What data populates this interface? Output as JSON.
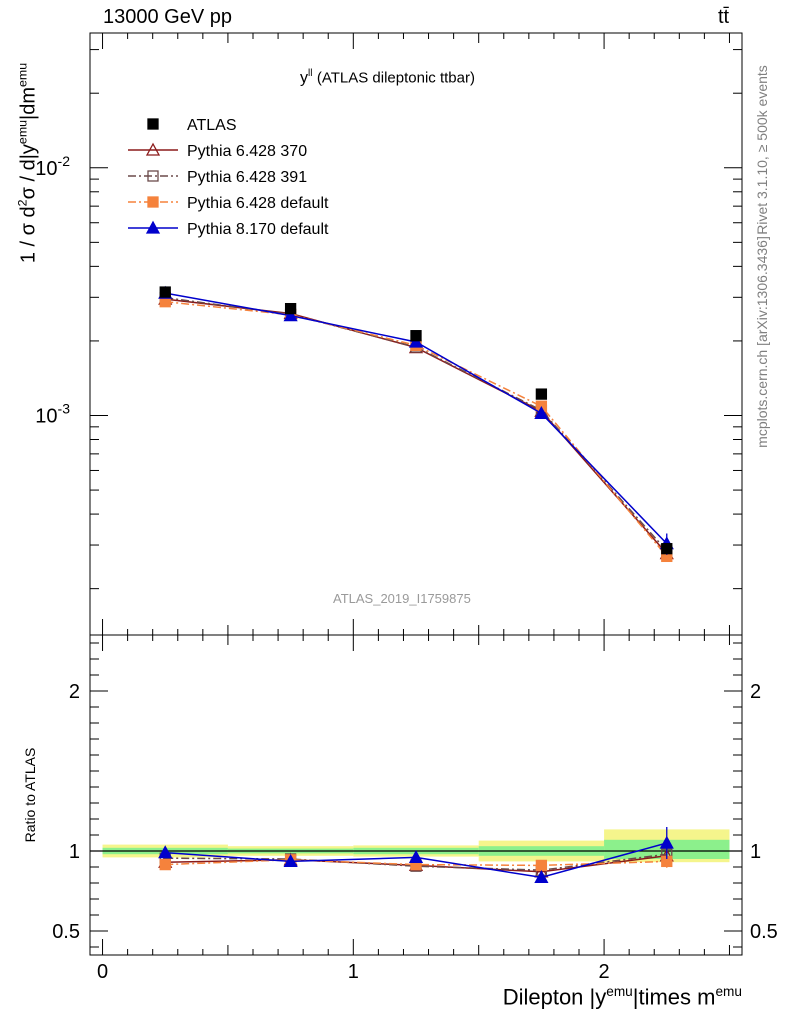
{
  "header": {
    "energy_label": "13000 GeV pp",
    "process_label": "tt̄",
    "rivet_label": "Rivet 3.1.10, ≥ 500k events",
    "mcplots_label": "mcplots.cern.ch [arXiv:1306.3436]",
    "analysis_id": "ATLAS_2019_I1759875"
  },
  "chart_data": [
    {
      "type": "line",
      "panel": "main",
      "title": "y^ll (ATLAS dileptonic ttbar)",
      "ylabel": "1 / σ d²σ / d|y^emu|dm^emu",
      "yscale": "log",
      "ylim": [
        0.00013,
        0.035
      ],
      "xlim": [
        -0.05,
        2.55
      ],
      "y_ticks": [
        {
          "value": 0.01,
          "label": "10^-2"
        },
        {
          "value": 0.001,
          "label": "10^-3"
        }
      ],
      "legend_position": "top-left",
      "x": [
        0.25,
        0.75,
        1.25,
        1.75,
        2.25
      ],
      "series": [
        {
          "name": "ATLAS",
          "color": "#000000",
          "marker": "filled-square",
          "style": "none",
          "values": [
            0.00315,
            0.0027,
            0.0021,
            0.00122,
            0.00029
          ]
        },
        {
          "name": "Pythia 6.428 370",
          "color": "#8b1a1a",
          "marker": "open-triangle",
          "style": "solid",
          "values": [
            0.00295,
            0.00258,
            0.00188,
            0.00104,
            0.000277
          ],
          "errors": [
            4e-05,
            3e-05,
            3e-05,
            3e-05,
            1e-05
          ]
        },
        {
          "name": "Pythia 6.428 391",
          "color": "#6b4a4a",
          "marker": "open-square",
          "style": "dashdot",
          "values": [
            0.00299,
            0.00256,
            0.00189,
            0.00105,
            0.000284
          ],
          "errors": [
            4e-05,
            3e-05,
            3e-05,
            3e-05,
            1e-05
          ]
        },
        {
          "name": "Pythia 6.428 default",
          "color": "#f5823c",
          "marker": "filled-square",
          "style": "dashdot",
          "values": [
            0.00288,
            0.00255,
            0.00192,
            0.00109,
            0.00027
          ],
          "errors": [
            4e-05,
            3e-05,
            3e-05,
            3e-05,
            1e-05
          ]
        },
        {
          "name": "Pythia 8.170 default",
          "color": "#0000cc",
          "marker": "filled-triangle",
          "style": "solid",
          "values": [
            0.00312,
            0.00253,
            0.00198,
            0.00102,
            0.000304
          ],
          "errors": [
            5e-05,
            3e-05,
            3e-05,
            4e-05,
            3e-05
          ]
        }
      ]
    },
    {
      "type": "line",
      "panel": "ratio",
      "ylabel": "Ratio to ATLAS",
      "xlabel": "Dilepton |y^emu|times m^emu",
      "ylim": [
        0.35,
        2.35
      ],
      "xlim": [
        -0.05,
        2.55
      ],
      "x_ticks": [
        {
          "value": 0,
          "label": "0"
        },
        {
          "value": 1,
          "label": "1"
        },
        {
          "value": 2,
          "label": "2"
        }
      ],
      "y_ticks": [
        {
          "value": 0.5,
          "label": "0.5"
        },
        {
          "value": 1,
          "label": "1"
        },
        {
          "value": 2,
          "label": "2"
        }
      ],
      "bins": [
        [
          0,
          0.5
        ],
        [
          0.5,
          1.0
        ],
        [
          1.0,
          1.5
        ],
        [
          1.5,
          2.0
        ],
        [
          2.0,
          2.5
        ]
      ],
      "band_inner": [
        [
          0.98,
          1.02
        ],
        [
          0.985,
          1.015
        ],
        [
          0.98,
          1.02
        ],
        [
          0.97,
          1.03
        ],
        [
          0.95,
          1.07
        ]
      ],
      "band_outer": [
        [
          0.96,
          1.04
        ],
        [
          0.97,
          1.03
        ],
        [
          0.965,
          1.035
        ],
        [
          0.935,
          1.065
        ],
        [
          0.93,
          1.135
        ]
      ],
      "x": [
        0.25,
        0.75,
        1.25,
        1.75,
        2.25
      ],
      "series": [
        {
          "name": "Pythia 6.428 370",
          "color": "#8b1a1a",
          "marker": "open-triangle",
          "style": "solid",
          "values": [
            0.93,
            0.945,
            0.91,
            0.87,
            0.97
          ],
          "errors": [
            0.02,
            0.015,
            0.015,
            0.025,
            0.04
          ]
        },
        {
          "name": "Pythia 6.428 391",
          "color": "#6b4a4a",
          "marker": "open-square",
          "style": "dashdot",
          "values": [
            0.955,
            0.95,
            0.905,
            0.88,
            0.98
          ],
          "errors": [
            0.02,
            0.015,
            0.015,
            0.025,
            0.04
          ]
        },
        {
          "name": "Pythia 6.428 default",
          "color": "#f5823c",
          "marker": "filled-square",
          "style": "dashdot",
          "values": [
            0.915,
            0.945,
            0.915,
            0.91,
            0.935
          ],
          "errors": [
            0.02,
            0.015,
            0.015,
            0.025,
            0.04
          ]
        },
        {
          "name": "Pythia 8.170 default",
          "color": "#0000cc",
          "marker": "filled-triangle",
          "style": "solid",
          "values": [
            0.99,
            0.935,
            0.96,
            0.835,
            1.05
          ],
          "errors": [
            0.03,
            0.015,
            0.02,
            0.03,
            0.1
          ]
        }
      ]
    }
  ]
}
